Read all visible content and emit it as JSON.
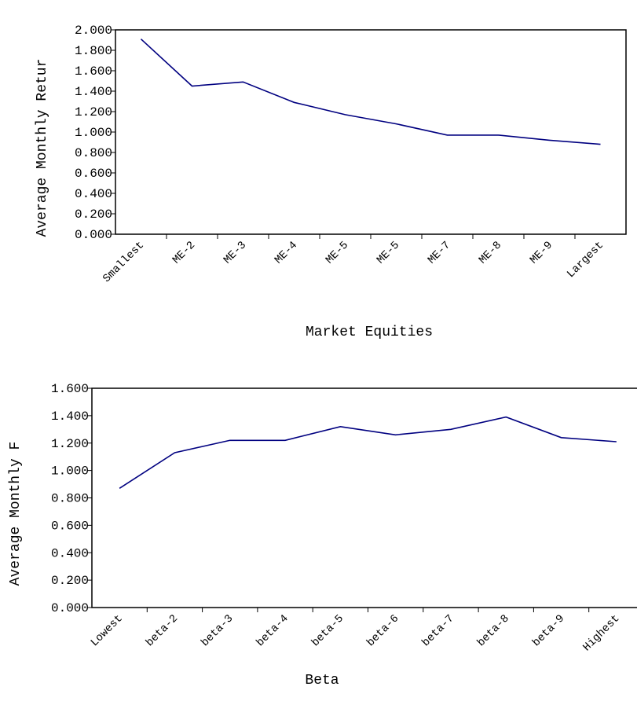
{
  "chart_data": [
    {
      "type": "line",
      "y_label": "Average Monthly Retur",
      "x_label": "Market Equities",
      "categories": [
        "Smallest",
        "ME-2",
        "ME-3",
        "ME-4",
        "ME-5",
        "ME-5",
        "ME-7",
        "ME-8",
        "ME-9",
        "Largest"
      ],
      "values": [
        1.91,
        1.45,
        1.49,
        1.29,
        1.17,
        1.08,
        0.97,
        0.97,
        0.92,
        0.88
      ],
      "color": "#000080",
      "ylim": [
        0,
        2
      ],
      "yticks": [
        {
          "value": 0,
          "label": "0.000"
        },
        {
          "value": 0.2,
          "label": "0.200"
        },
        {
          "value": 0.4,
          "label": "0.400"
        },
        {
          "value": 0.6,
          "label": "0.600"
        },
        {
          "value": 0.8,
          "label": "0.800"
        },
        {
          "value": 1,
          "label": "1.000"
        },
        {
          "value": 1.2,
          "label": "1.200"
        },
        {
          "value": 1.4,
          "label": "1.400"
        },
        {
          "value": 1.6,
          "label": "1.600"
        },
        {
          "value": 1.8,
          "label": "1.800"
        },
        {
          "value": 2,
          "label": "2.000"
        }
      ]
    },
    {
      "type": "line",
      "y_label": "Average Monthly F",
      "x_label": "Beta",
      "categories": [
        "Lowest",
        "beta-2",
        "beta-3",
        "beta-4",
        "beta-5",
        "beta-6",
        "beta-7",
        "beta-8",
        "beta-9",
        "Highest"
      ],
      "values": [
        0.87,
        1.13,
        1.22,
        1.22,
        1.32,
        1.26,
        1.3,
        1.39,
        1.24,
        1.21
      ],
      "color": "#000080",
      "ylim": [
        0,
        1.6
      ],
      "yticks": [
        {
          "value": 0,
          "label": "0.000"
        },
        {
          "value": 0.2,
          "label": "0.200"
        },
        {
          "value": 0.4,
          "label": "0.400"
        },
        {
          "value": 0.6,
          "label": "0.600"
        },
        {
          "value": 0.8,
          "label": "0.800"
        },
        {
          "value": 1,
          "label": "1.000"
        },
        {
          "value": 1.2,
          "label": "1.200"
        },
        {
          "value": 1.4,
          "label": "1.400"
        },
        {
          "value": 1.6,
          "label": "1.600"
        }
      ]
    }
  ]
}
